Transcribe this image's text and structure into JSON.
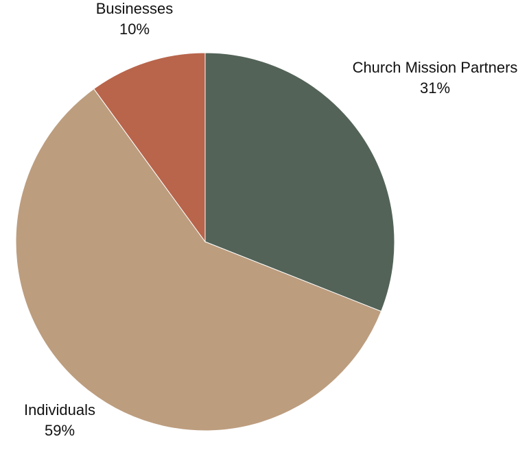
{
  "chart_data": {
    "type": "pie",
    "title": "",
    "slices": [
      {
        "label": "Church Mission Partners",
        "value": 31,
        "value_label": "31%",
        "color": "#536358"
      },
      {
        "label": "Individuals",
        "value": 59,
        "value_label": "59%",
        "color": "#bc9d7e"
      },
      {
        "label": "Businesses",
        "value": 10,
        "value_label": "10%",
        "color": "#b8654c"
      }
    ],
    "start_angle": "12 o'clock",
    "direction": "clockwise",
    "legend": "none",
    "labels": "outside"
  }
}
